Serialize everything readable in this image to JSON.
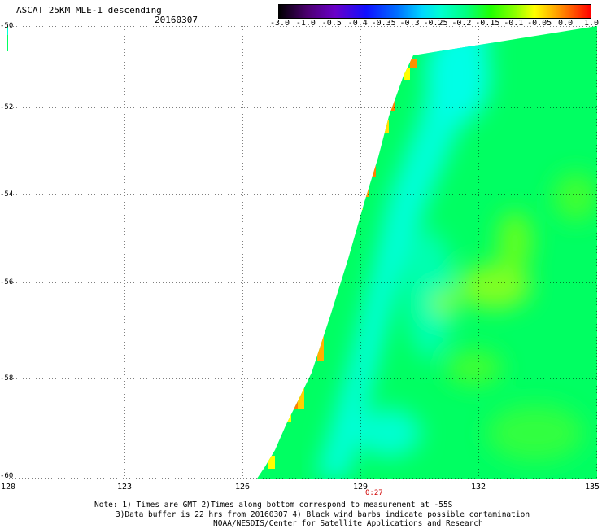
{
  "header": {
    "title": "ASCAT 25KM MLE-1 descending",
    "date": "20160307"
  },
  "colorbar": {
    "ticks": [
      "-3.0",
      "-1.0",
      "-0.5",
      "-0.4",
      "-0.35",
      "-0.3",
      "-0.25",
      "-0.2",
      "-0.15",
      "-0.1",
      "-0.05",
      "0.0",
      "1.0"
    ]
  },
  "map": {
    "lon_range": [
      120,
      135
    ],
    "lat_range": [
      -60,
      -50
    ],
    "lon_ticks": [
      "120",
      "123",
      "126",
      "129",
      "132",
      "135"
    ],
    "lat_ticks": [
      "-50",
      "-52",
      "-54",
      "-56",
      "-58",
      "-60"
    ],
    "time_label": "0:27",
    "colors": {
      "cyan": "#00ffd8",
      "green": "#00ff60",
      "bright_green": "#30ff00",
      "yellow": "#ffff00",
      "orange": "#ff8000"
    }
  },
  "notes": {
    "line1": "Note: 1) Times are GMT 2)Times along bottom correspond to measurement at -55S",
    "line2": "3)Data buffer is 22 hrs from 20160307 4) Black wind barbs indicate possible contamination",
    "line3": "NOAA/NESDIS/Center for Satellite Applications and Research"
  }
}
